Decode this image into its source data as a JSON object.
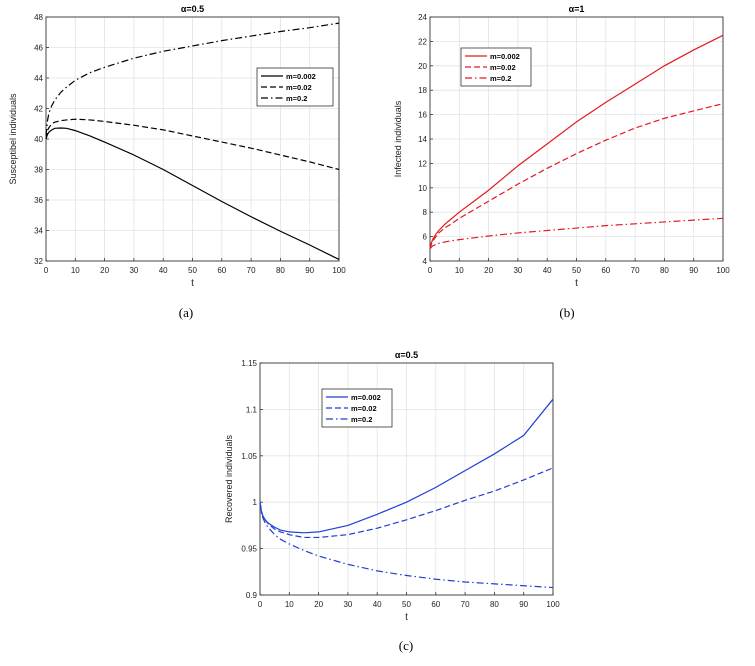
{
  "panels": [
    {
      "caption": "(a)",
      "chart_data": {
        "type": "line",
        "title": "α=0.5",
        "xlabel": "t",
        "ylabel": "Susceptibel individuals",
        "xlim": [
          0,
          100
        ],
        "ylim": [
          32,
          48
        ],
        "xticks": [
          0,
          10,
          20,
          30,
          40,
          50,
          60,
          70,
          80,
          90,
          100
        ],
        "yticks": [
          32,
          34,
          36,
          38,
          40,
          42,
          44,
          46,
          48
        ],
        "grid": true,
        "legend_position": "top-right",
        "color": "#000000",
        "x": [
          0,
          0.5,
          1,
          2,
          3,
          5,
          7,
          10,
          15,
          20,
          30,
          40,
          50,
          60,
          70,
          80,
          90,
          100
        ],
        "series": [
          {
            "name": "m=0.002",
            "dash": "solid",
            "values": [
              40.0,
              40.3,
              40.45,
              40.6,
              40.7,
              40.72,
              40.7,
              40.55,
              40.2,
              39.8,
              38.95,
              38.0,
              36.95,
              35.9,
              34.9,
              33.95,
              33.05,
              32.1
            ]
          },
          {
            "name": "m=0.02",
            "dash": "dashed",
            "values": [
              40.0,
              40.55,
              40.75,
              41.0,
              41.1,
              41.2,
              41.25,
              41.3,
              41.25,
              41.15,
              40.9,
              40.6,
              40.2,
              39.8,
              39.4,
              38.95,
              38.5,
              38.0
            ]
          },
          {
            "name": "m=0.2",
            "dash": "dashdot",
            "values": [
              40.2,
              41.2,
              41.7,
              42.2,
              42.55,
              43.05,
              43.4,
              43.85,
              44.35,
              44.7,
              45.3,
              45.75,
              46.1,
              46.45,
              46.75,
              47.05,
              47.3,
              47.6
            ]
          }
        ]
      }
    },
    {
      "caption": "(b)",
      "chart_data": {
        "type": "line",
        "title": "α=1",
        "xlabel": "t",
        "ylabel": "Infected individuals",
        "xlim": [
          0,
          100
        ],
        "ylim": [
          4,
          24
        ],
        "xticks": [
          0,
          10,
          20,
          30,
          40,
          50,
          60,
          70,
          80,
          90,
          100
        ],
        "yticks": [
          4,
          6,
          8,
          10,
          12,
          14,
          16,
          18,
          20,
          22,
          24
        ],
        "grid": true,
        "legend_position": "top-left",
        "color": "#e41a1c",
        "x": [
          0,
          0.5,
          1,
          2,
          3,
          5,
          7,
          10,
          15,
          20,
          30,
          40,
          50,
          60,
          70,
          80,
          90,
          100
        ],
        "series": [
          {
            "name": "m=0.002",
            "dash": "solid",
            "values": [
              5.0,
              5.5,
              5.8,
              6.2,
              6.5,
              7.0,
              7.4,
              8.0,
              8.9,
              9.8,
              11.8,
              13.6,
              15.4,
              17.0,
              18.5,
              20.0,
              21.3,
              22.5
            ]
          },
          {
            "name": "m=0.02",
            "dash": "dashed",
            "values": [
              5.0,
              5.4,
              5.65,
              6.0,
              6.3,
              6.7,
              7.0,
              7.5,
              8.2,
              8.9,
              10.3,
              11.6,
              12.8,
              13.9,
              14.9,
              15.7,
              16.3,
              16.9
            ]
          },
          {
            "name": "m=0.2",
            "dash": "dashdot",
            "values": [
              5.0,
              5.15,
              5.25,
              5.35,
              5.45,
              5.55,
              5.65,
              5.75,
              5.9,
              6.05,
              6.3,
              6.5,
              6.7,
              6.9,
              7.05,
              7.2,
              7.35,
              7.5
            ]
          }
        ]
      }
    },
    {
      "caption": "(c)",
      "chart_data": {
        "type": "line",
        "title": "α=0.5",
        "xlabel": "t",
        "ylabel": "Recovered individuals",
        "xlim": [
          0,
          100
        ],
        "ylim": [
          0.9,
          1.15
        ],
        "xticks": [
          0,
          10,
          20,
          30,
          40,
          50,
          60,
          70,
          80,
          90,
          100
        ],
        "yticks": [
          "0.9",
          "0.95",
          "1",
          "1.05",
          "1.1",
          "1.15"
        ],
        "grid": true,
        "legend_position": "top-left",
        "color": "#1f3fd6",
        "x": [
          0,
          0.5,
          1,
          2,
          3,
          5,
          7,
          10,
          15,
          20,
          30,
          40,
          50,
          60,
          70,
          80,
          90,
          100
        ],
        "series": [
          {
            "name": "m=0.002",
            "dash": "solid",
            "values": [
              1.0,
              0.99,
              0.985,
              0.98,
              0.977,
              0.973,
              0.97,
              0.968,
              0.967,
              0.968,
              0.975,
              0.987,
              1.0,
              1.016,
              1.034,
              1.052,
              1.072,
              1.111
            ]
          },
          {
            "name": "m=0.02",
            "dash": "dashed",
            "values": [
              1.0,
              0.99,
              0.985,
              0.98,
              0.976,
              0.971,
              0.968,
              0.965,
              0.962,
              0.962,
              0.965,
              0.972,
              0.981,
              0.991,
              1.002,
              1.012,
              1.024,
              1.037
            ]
          },
          {
            "name": "m=0.2",
            "dash": "dashdot",
            "values": [
              1.0,
              0.988,
              0.983,
              0.976,
              0.972,
              0.965,
              0.96,
              0.955,
              0.948,
              0.942,
              0.933,
              0.926,
              0.921,
              0.917,
              0.914,
              0.912,
              0.91,
              0.908
            ]
          }
        ]
      }
    }
  ]
}
